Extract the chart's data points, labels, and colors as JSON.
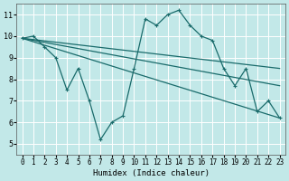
{
  "xlabel": "Humidex (Indice chaleur)",
  "bg_color": "#c2e8e8",
  "line_color": "#1a6b6b",
  "grid_color": "#ffffff",
  "xlim": [
    -0.5,
    23.5
  ],
  "ylim": [
    4.5,
    11.5
  ],
  "xticks": [
    0,
    1,
    2,
    3,
    4,
    5,
    6,
    7,
    8,
    9,
    10,
    11,
    12,
    13,
    14,
    15,
    16,
    17,
    18,
    19,
    20,
    21,
    22,
    23
  ],
  "yticks": [
    5,
    6,
    7,
    8,
    9,
    10,
    11
  ],
  "lines": [
    {
      "x": [
        0,
        1,
        2,
        3,
        4,
        5,
        6,
        7,
        8,
        9,
        10,
        11,
        12,
        13,
        14,
        15,
        16,
        17,
        18,
        19,
        20,
        21,
        22,
        23
      ],
      "y": [
        9.9,
        10.0,
        9.5,
        9.0,
        7.5,
        8.5,
        7.0,
        5.2,
        6.0,
        6.3,
        8.5,
        10.8,
        10.5,
        11.0,
        11.2,
        10.5,
        10.0,
        9.8,
        8.5,
        7.7,
        8.5,
        6.5,
        7.0,
        6.2
      ],
      "markers": true
    },
    {
      "x": [
        0,
        23
      ],
      "y": [
        9.9,
        8.5
      ],
      "markers": false
    },
    {
      "x": [
        0,
        23
      ],
      "y": [
        9.9,
        7.7
      ],
      "markers": false
    },
    {
      "x": [
        0,
        23
      ],
      "y": [
        9.9,
        6.2
      ],
      "markers": false
    }
  ]
}
